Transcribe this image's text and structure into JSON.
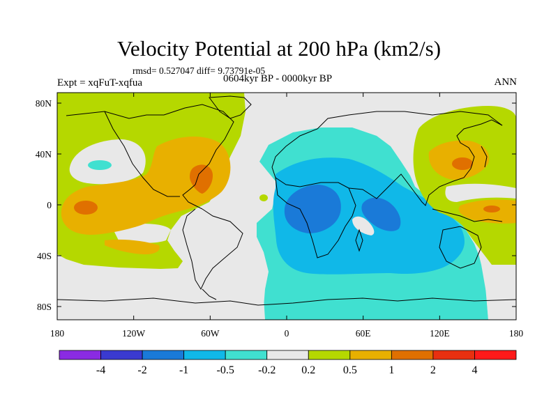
{
  "title": "Velocity Potential at 200 hPa (km2/s)",
  "stats": "rmsd= 0.527047 diff= 9.73791e-05",
  "experiment": "Expt = xqFuT-xqfua",
  "period": "0604kyr BP - 0000kyr BP",
  "season": "ANN",
  "x_ticks": [
    "180",
    "120W",
    "60W",
    "0",
    "60E",
    "120E",
    "180"
  ],
  "y_ticks": [
    "80N",
    "40N",
    "0",
    "40S",
    "80S"
  ],
  "colorbar": {
    "labels": [
      "-4",
      "-2",
      "-1",
      "-0.5",
      "-0.2",
      "0.2",
      "0.5",
      "1",
      "2",
      "4"
    ],
    "colors": [
      "#8a2be2",
      "#3a3ad0",
      "#1a7ad8",
      "#10b8e8",
      "#40e0d0",
      "#e8e8e8",
      "#b5d800",
      "#e8b000",
      "#e07000",
      "#e83010",
      "#ff1a1a"
    ]
  },
  "field_colors": {
    "neutral": "#e8e8e8",
    "pos1": "#b5d800",
    "pos2": "#e8b000",
    "pos3": "#e07000",
    "neg1": "#40e0d0",
    "neg2": "#10b8e8",
    "neg3": "#1a7ad8"
  }
}
